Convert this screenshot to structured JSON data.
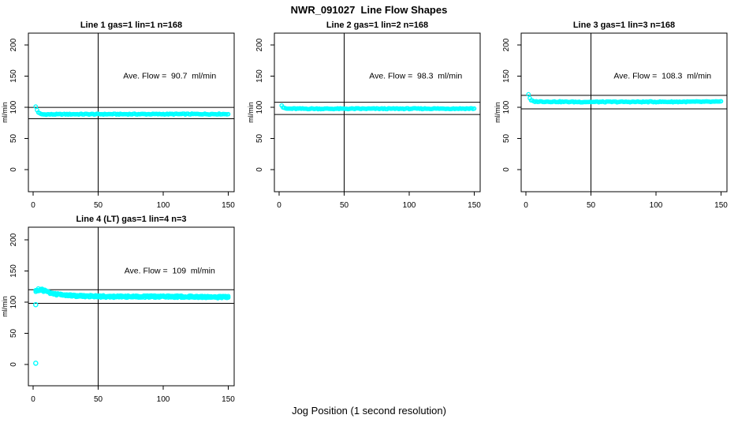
{
  "chart_data": {
    "type": "scatter",
    "title": "NWR_091027  Line Flow Shapes",
    "xlabel": "Jog Position (1 second resolution)",
    "ylabel": "ml/min",
    "x_ticks": [
      0,
      50,
      100,
      150
    ],
    "y_ticks": [
      0,
      50,
      100,
      150,
      200
    ],
    "x_tick_labels": [
      "0",
      "50",
      "100",
      "150"
    ],
    "y_tick_labels": [
      "0",
      "50",
      "100",
      "150",
      "200"
    ],
    "xlim": [
      -4,
      154
    ],
    "ylim": [
      -35,
      219
    ],
    "grid": false,
    "legend": "none",
    "point_color": "#00ffff",
    "line_color": "#000000",
    "marker": "open-circle",
    "panels": [
      {
        "title": "Line 1 gas=1 lin=1 n=168",
        "annotation": "Ave. Flow =  90.7  ml/min",
        "avg_flow_ml_min": 90.7,
        "n_points": 168,
        "ref_vertical_x": 50,
        "ref_line_upper": 99.8,
        "ref_line_lower": 81.6,
        "series": [
          {
            "x_start": 2,
            "x_end": 150,
            "noise": 0.7,
            "seed": 1,
            "keypoints": [
              [
                2,
                101
              ],
              [
                3,
                95.5
              ],
              [
                4,
                92
              ],
              [
                5,
                90
              ],
              [
                6,
                89
              ],
              [
                8,
                88.6
              ],
              [
                30,
                88.9
              ],
              [
                150,
                89.2
              ]
            ]
          }
        ],
        "outliers": []
      },
      {
        "title": "Line 2 gas=1 lin=2 n=168",
        "annotation": "Ave. Flow =  98.3  ml/min",
        "avg_flow_ml_min": 98.3,
        "n_points": 168,
        "ref_vertical_x": 50,
        "ref_line_upper": 108.1,
        "ref_line_lower": 88.5,
        "series": [
          {
            "x_start": 2,
            "x_end": 150,
            "noise": 0.7,
            "seed": 2,
            "keypoints": [
              [
                2,
                103
              ],
              [
                3,
                100
              ],
              [
                4,
                98.5
              ],
              [
                6,
                97.8
              ],
              [
                40,
                97.6
              ],
              [
                150,
                97.9
              ]
            ]
          }
        ],
        "outliers": []
      },
      {
        "title": "Line 3 gas=1 lin=3 n=168",
        "annotation": "Ave. Flow =  108.3  ml/min",
        "avg_flow_ml_min": 108.3,
        "n_points": 168,
        "ref_vertical_x": 50,
        "ref_line_upper": 119.1,
        "ref_line_lower": 97.5,
        "series": [
          {
            "x_start": 2,
            "x_end": 150,
            "noise": 0.7,
            "seed": 3,
            "keypoints": [
              [
                2,
                121
              ],
              [
                3,
                114
              ],
              [
                4,
                111
              ],
              [
                6,
                109.3
              ],
              [
                40,
                108.6
              ],
              [
                150,
                108.9
              ]
            ]
          }
        ],
        "outliers": []
      },
      {
        "title": "Line 4 (LT) gas=1 lin=4 n=3",
        "annotation": "Ave. Flow =  109  ml/min",
        "avg_flow_ml_min": 109,
        "n_points": 3,
        "ref_vertical_x": 50,
        "ref_line_upper": 119.9,
        "ref_line_lower": 98.1,
        "series": [
          {
            "x_start": 2,
            "x_end": 150,
            "noise": 1.6,
            "seed": 4,
            "keypoints": [
              [
                2,
                119
              ],
              [
                6,
                119.5
              ],
              [
                10,
                117
              ],
              [
                15,
                113.5
              ],
              [
                25,
                110.5
              ],
              [
                60,
                108.5
              ],
              [
                100,
                109.5
              ],
              [
                150,
                107.5
              ]
            ]
          },
          {
            "x_start": 2,
            "x_end": 150,
            "noise": 1.6,
            "seed": 5,
            "keypoints": [
              [
                2,
                118
              ],
              [
                7,
                120
              ],
              [
                12,
                115.5
              ],
              [
                20,
                111.5
              ],
              [
                40,
                109.5
              ],
              [
                90,
                108.5
              ],
              [
                150,
                108.2
              ]
            ]
          },
          {
            "x_start": 2,
            "x_end": 150,
            "noise": 1.6,
            "seed": 6,
            "keypoints": [
              [
                2,
                120.5
              ],
              [
                5,
                121
              ],
              [
                9,
                118
              ],
              [
                14,
                114
              ],
              [
                30,
                110
              ],
              [
                70,
                109.2
              ],
              [
                150,
                108.8
              ]
            ]
          }
        ],
        "outliers": [
          [
            2,
            96
          ],
          [
            2,
            2
          ]
        ]
      }
    ]
  }
}
